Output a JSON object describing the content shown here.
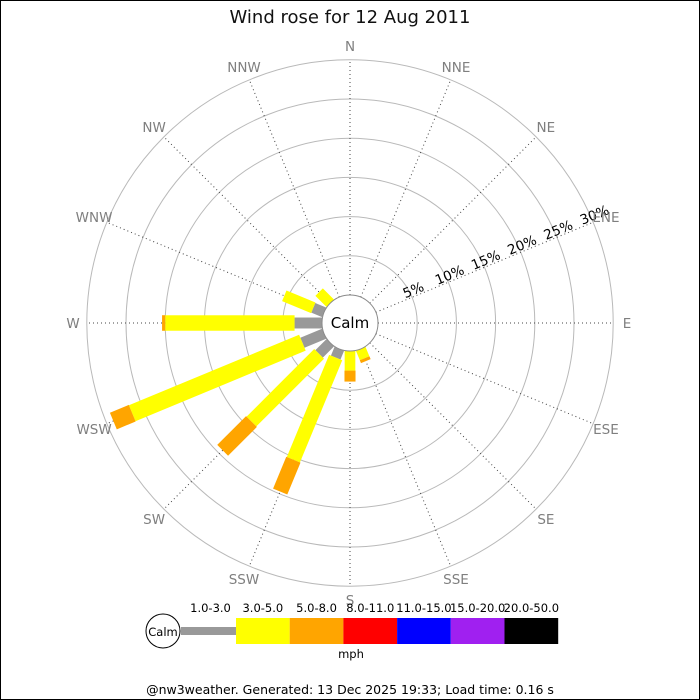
{
  "window": {
    "title": "Wind rose for 12 Aug 2011"
  },
  "footer": {
    "text": "@nw3weather. Generated: 13 Dec 2025 19:33; Load time: 0.16 s"
  },
  "chart_data": {
    "type": "wind_rose",
    "title": "Wind rose for 12 Aug 2011",
    "center_label": "Calm",
    "units_label": "mph",
    "grid": "on",
    "radial_axis": {
      "tick_labels": [
        "5%",
        "10%",
        "15%",
        "20%",
        "25%",
        "30%"
      ],
      "tick_values_pct": [
        5,
        10,
        15,
        20,
        25,
        30
      ],
      "tick_label_direction": "ENE",
      "max_pct": 30
    },
    "compass_labels": [
      "N",
      "NNE",
      "NE",
      "ENE",
      "E",
      "ESE",
      "SE",
      "SSE",
      "S",
      "SSW",
      "SW",
      "WSW",
      "W",
      "WNW",
      "NW",
      "NNW"
    ],
    "speed_bins": [
      {
        "label": "1.0-3.0",
        "color": "#999999"
      },
      {
        "label": "3.0-5.0",
        "color": "#ffff00"
      },
      {
        "label": "5.0-8.0",
        "color": "#ffa500"
      },
      {
        "label": "8.0-11.0",
        "color": "#ff0000"
      },
      {
        "label": "11.0-15.0",
        "color": "#0000ff"
      },
      {
        "label": "15.0-20.0",
        "color": "#a020f0"
      },
      {
        "label": "20.0-50.0",
        "color": "#000000"
      }
    ],
    "petals_pct": {
      "WNW": [
        1.5,
        4.0,
        0,
        0,
        0,
        0,
        0
      ],
      "NW": [
        0,
        2.0,
        0,
        0,
        0,
        0,
        0
      ],
      "W": [
        3.5,
        16.5,
        0.4,
        0,
        0,
        0,
        0
      ],
      "WSW": [
        3.0,
        23.5,
        2.6,
        0,
        0,
        0,
        0
      ],
      "SW": [
        2.0,
        12.2,
        5.2,
        0,
        0,
        0,
        0
      ],
      "SSW": [
        1.2,
        14.1,
        4.4,
        0,
        0,
        0,
        0
      ],
      "S": [
        0,
        2.5,
        1.4,
        0,
        0,
        0,
        0
      ],
      "SSE": [
        0,
        1.3,
        0.4,
        0,
        0,
        0,
        0
      ]
    },
    "legend": {
      "calm_label": "Calm",
      "position": "bottom"
    }
  }
}
